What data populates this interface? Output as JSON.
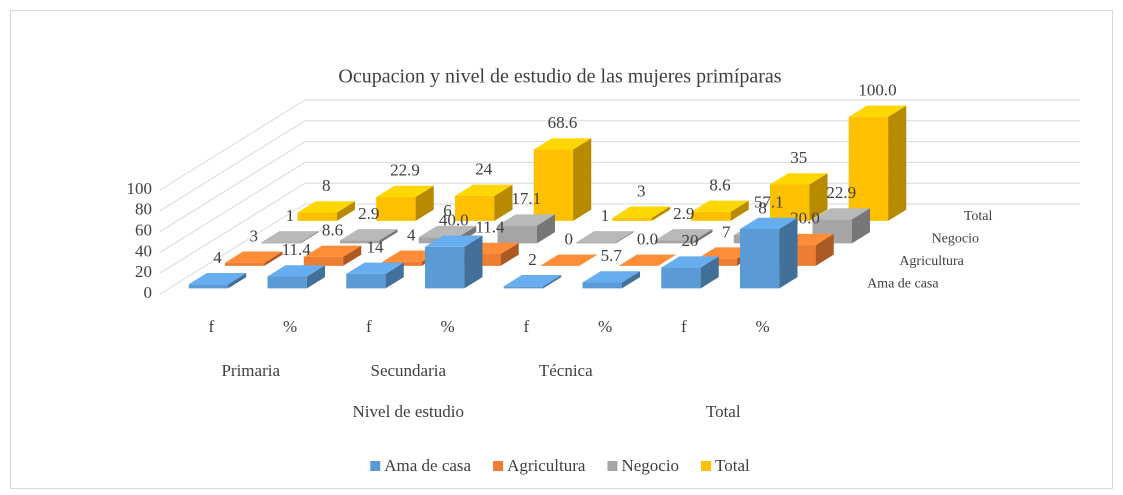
{
  "chart_data": {
    "type": "bar3d",
    "title": "Ocupacion y nivel de estudio de las mujeres primíparas",
    "categories": [
      "f",
      "%",
      "f",
      "%",
      "f",
      "%",
      "f",
      "%"
    ],
    "groups": [
      {
        "name": "Nivel de estudio",
        "subgroups": [
          "Primaria",
          "Secundaria",
          "Técnica"
        ]
      },
      {
        "name": "Total"
      }
    ],
    "series": [
      {
        "name": "Ama de casa",
        "color": "#5b9bd5",
        "values": [
          4,
          11.4,
          14,
          40,
          2,
          5.7,
          20,
          57.1
        ],
        "value_labels": [
          "4",
          "11.4",
          "14",
          "40.0",
          "2",
          "5.7",
          "20",
          "57.1"
        ]
      },
      {
        "name": "Agricultura",
        "color": "#ed7d31",
        "values": [
          3,
          8.6,
          4,
          11.4,
          0,
          0,
          7,
          20
        ],
        "value_labels": [
          "3",
          "8.6",
          "4",
          "11.4",
          "0",
          "0.0",
          "7",
          "20.0"
        ]
      },
      {
        "name": "Negocio",
        "color": "#a5a5a5",
        "values": [
          1,
          2.9,
          6,
          17.1,
          1,
          2.9,
          8,
          22.9
        ]
      },
      {
        "name": "Total",
        "color": "#ffc000",
        "values": [
          8,
          22.9,
          24,
          68.6,
          3,
          8.6,
          35,
          100
        ],
        "value_labels": [
          "8",
          "22.9",
          "24",
          "68.6",
          "3",
          "8.6",
          "35",
          "100.0"
        ]
      }
    ],
    "ylim": [
      0,
      100
    ],
    "yticks": [
      0,
      20,
      40,
      60,
      80,
      100
    ],
    "grid": true,
    "legend": "bottom"
  }
}
